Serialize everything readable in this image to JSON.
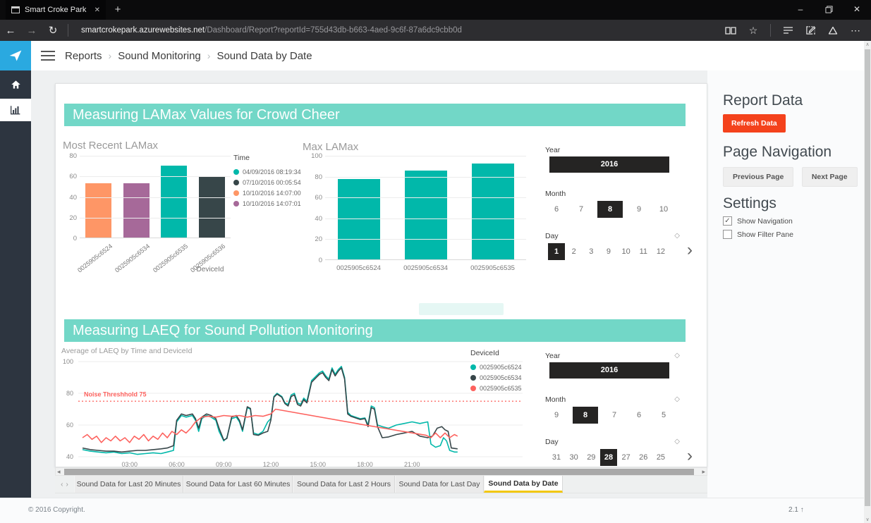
{
  "browser": {
    "tab_title": "Smart Croke Park",
    "url_domain": "smartcrokepark.azurewebsites.net",
    "url_path": "/Dashboard/Report?reportId=755d43db-b663-4aed-9c6f-87a6dc9cbb0d",
    "icons": {
      "back": "←",
      "forward": "→",
      "refresh": "↻",
      "close_tab": "✕",
      "new_tab": "+",
      "star": "☆",
      "more": "⋯",
      "minimize": "–",
      "close_window": "✕"
    }
  },
  "header": {
    "breadcrumb": [
      "Reports",
      "Sound Monitoring",
      "Sound Data by Date"
    ],
    "separator": "›"
  },
  "report": {
    "section1_title": "Measuring LAMax Values for Crowd Cheer",
    "section2_title": "Measuring LAEQ for Sound Pollution Monitoring"
  },
  "slicers": {
    "top": {
      "year_label": "Year",
      "year_selected": "2016",
      "month_label": "Month",
      "month_values": [
        "6",
        "7",
        "8",
        "9",
        "10"
      ],
      "month_selected": "8",
      "day_label": "Day",
      "day_values": [
        "1",
        "2",
        "3",
        "9",
        "10",
        "11",
        "12"
      ],
      "day_selected": "1",
      "erasers": {
        "year": false,
        "month": false,
        "day": true
      }
    },
    "bottom": {
      "year_label": "Year",
      "year_selected": "2016",
      "month_label": "Month",
      "month_values": [
        "9",
        "8",
        "7",
        "6",
        "5"
      ],
      "month_selected": "8",
      "day_label": "Day",
      "day_values": [
        "31",
        "30",
        "29",
        "28",
        "27",
        "26",
        "25"
      ],
      "day_selected": "28",
      "erasers": {
        "year": true,
        "month": true,
        "day": true
      }
    }
  },
  "chart_data": [
    {
      "id": "most_recent_lamax",
      "type": "bar",
      "title": "Most Recent LAMax",
      "categories": [
        "0025905c6524",
        "0025905c6534",
        "0025905c6535",
        "0025905c6536"
      ],
      "values": [
        53,
        53,
        70,
        59
      ],
      "colors": [
        "#FE9666",
        "#A66999",
        "#01B8AA",
        "#374649"
      ],
      "xlabel": "DeviceId",
      "ylim": [
        0,
        80
      ],
      "yticks": [
        0,
        20,
        40,
        60,
        80
      ],
      "legend_title": "Time",
      "legend": [
        {
          "label": "04/09/2016 08:19:34",
          "color": "#01B8AA"
        },
        {
          "label": "07/10/2016 00:05:54",
          "color": "#374649"
        },
        {
          "label": "10/10/2016 14:07:00",
          "color": "#FE9666"
        },
        {
          "label": "10/10/2016 14:07:01",
          "color": "#A66999"
        }
      ]
    },
    {
      "id": "max_lamax",
      "type": "bar",
      "title": "Max LAMax",
      "categories": [
        "0025905c6524",
        "0025905c6534",
        "0025905c6535"
      ],
      "values": [
        77,
        85,
        92
      ],
      "colors": [
        "#01B8AA",
        "#01B8AA",
        "#01B8AA"
      ],
      "xlabel": "",
      "ylim": [
        0,
        100
      ],
      "yticks": [
        0,
        20,
        40,
        60,
        80,
        100
      ]
    },
    {
      "id": "laeq_by_time",
      "type": "line",
      "title": "Average of LAEQ by Time and DeviceId",
      "xticks": [
        "03:00",
        "06:00",
        "09:00",
        "12:00",
        "15:00",
        "18:00",
        "21:00"
      ],
      "xtick_hours": [
        3,
        6,
        9,
        12,
        15,
        18,
        21
      ],
      "xrange": [
        0,
        24
      ],
      "ylim": [
        40,
        100
      ],
      "yticks": [
        40,
        60,
        80,
        100
      ],
      "threshold": {
        "value": 75,
        "label": "Noise Threshhold 75",
        "color": "#FD625E"
      },
      "legend_title": "DeviceId",
      "series": [
        {
          "name": "0025905c6524",
          "color": "#01B8AA",
          "points": [
            [
              0,
              44.5
            ],
            [
              0.5,
              43.5
            ],
            [
              1,
              43
            ],
            [
              1.5,
              42.5
            ],
            [
              2,
              43
            ],
            [
              2.5,
              42
            ],
            [
              3,
              42.5
            ],
            [
              3.5,
              41.5
            ],
            [
              4,
              42
            ],
            [
              4.5,
              42.5
            ],
            [
              5,
              42
            ],
            [
              5.4,
              43
            ],
            [
              5.8,
              44
            ],
            [
              6,
              62
            ],
            [
              6.3,
              66
            ],
            [
              6.6,
              65
            ],
            [
              7,
              66
            ],
            [
              7.2,
              63
            ],
            [
              7.4,
              56
            ],
            [
              7.6,
              64
            ],
            [
              7.9,
              66
            ],
            [
              8.2,
              65
            ],
            [
              8.5,
              63
            ],
            [
              8.7,
              56
            ],
            [
              9,
              50
            ],
            [
              9.2,
              52
            ],
            [
              9.5,
              64
            ],
            [
              9.8,
              65
            ],
            [
              10,
              62
            ],
            [
              10.2,
              56
            ],
            [
              10.5,
              71
            ],
            [
              10.7,
              70
            ],
            [
              10.9,
              55
            ],
            [
              11.2,
              54
            ],
            [
              11.5,
              56
            ],
            [
              11.8,
              62
            ],
            [
              12,
              64
            ],
            [
              12.2,
              78
            ],
            [
              12.4,
              80
            ],
            [
              12.7,
              78
            ],
            [
              12.9,
              74
            ],
            [
              13.1,
              73
            ],
            [
              13.3,
              79
            ],
            [
              13.5,
              80
            ],
            [
              13.7,
              74
            ],
            [
              13.9,
              73
            ],
            [
              14.1,
              77
            ],
            [
              14.3,
              75
            ],
            [
              14.6,
              88
            ],
            [
              14.9,
              91
            ],
            [
              15.1,
              93
            ],
            [
              15.3,
              94
            ],
            [
              15.5,
              91
            ],
            [
              15.7,
              89
            ],
            [
              15.9,
              96
            ],
            [
              16.1,
              92
            ],
            [
              16.3,
              95
            ],
            [
              16.5,
              97
            ],
            [
              16.7,
              90
            ],
            [
              16.9,
              68
            ],
            [
              17.1,
              66
            ],
            [
              17.4,
              65
            ],
            [
              17.7,
              64
            ],
            [
              18,
              64.5
            ],
            [
              18.2,
              60
            ],
            [
              18.4,
              72
            ],
            [
              18.6,
              71
            ],
            [
              18.8,
              60
            ],
            [
              19.1,
              59
            ],
            [
              19.5,
              58
            ],
            [
              20,
              60
            ],
            [
              20.5,
              61
            ],
            [
              21,
              62
            ],
            [
              21.5,
              61
            ],
            [
              22,
              62
            ],
            [
              22.2,
              48
            ],
            [
              22.5,
              46
            ],
            [
              22.8,
              47
            ],
            [
              23,
              52
            ],
            [
              23.2,
              50
            ],
            [
              23.4,
              44
            ],
            [
              23.7,
              43
            ],
            [
              23.9,
              43
            ]
          ]
        },
        {
          "name": "0025905c6534",
          "color": "#374649",
          "points": [
            [
              0,
              45.5
            ],
            [
              0.5,
              44.5
            ],
            [
              1,
              44
            ],
            [
              1.5,
              43.5
            ],
            [
              2,
              43.5
            ],
            [
              2.5,
              43
            ],
            [
              3,
              43.5
            ],
            [
              3.5,
              44
            ],
            [
              4,
              44
            ],
            [
              4.5,
              44.5
            ],
            [
              5,
              45
            ],
            [
              5.4,
              45.5
            ],
            [
              5.8,
              47
            ],
            [
              6,
              63
            ],
            [
              6.3,
              67
            ],
            [
              6.6,
              66
            ],
            [
              7,
              67
            ],
            [
              7.2,
              64
            ],
            [
              7.4,
              58
            ],
            [
              7.6,
              65
            ],
            [
              7.9,
              67
            ],
            [
              8.2,
              66
            ],
            [
              8.5,
              64
            ],
            [
              8.7,
              58
            ],
            [
              9,
              50.5
            ],
            [
              9.2,
              51.5
            ],
            [
              9.5,
              65
            ],
            [
              9.8,
              66
            ],
            [
              10,
              63
            ],
            [
              10.2,
              57
            ],
            [
              10.5,
              71.5
            ],
            [
              10.7,
              70.5
            ],
            [
              10.9,
              54
            ],
            [
              11.2,
              53.5
            ],
            [
              11.5,
              55
            ],
            [
              11.8,
              56
            ],
            [
              12,
              63
            ],
            [
              12.2,
              77.5
            ],
            [
              12.4,
              79.5
            ],
            [
              12.7,
              77.5
            ],
            [
              12.9,
              73.5
            ],
            [
              13.1,
              72
            ],
            [
              13.3,
              78
            ],
            [
              13.5,
              79
            ],
            [
              13.7,
              73
            ],
            [
              13.9,
              72
            ],
            [
              14.1,
              76
            ],
            [
              14.3,
              74
            ],
            [
              14.6,
              87
            ],
            [
              14.9,
              90
            ],
            [
              15.1,
              92
            ],
            [
              15.3,
              93
            ],
            [
              15.5,
              90
            ],
            [
              15.7,
              88
            ],
            [
              15.9,
              95
            ],
            [
              16.1,
              91
            ],
            [
              16.3,
              94
            ],
            [
              16.5,
              96
            ],
            [
              16.7,
              89
            ],
            [
              16.9,
              67
            ],
            [
              17.1,
              65.5
            ],
            [
              17.4,
              64.5
            ],
            [
              17.7,
              63.5
            ],
            [
              18,
              64
            ],
            [
              18.2,
              59
            ],
            [
              18.4,
              71
            ],
            [
              18.6,
              70
            ],
            [
              18.8,
              59
            ],
            [
              19.1,
              52
            ],
            [
              19.5,
              52.5
            ],
            [
              20,
              54
            ],
            [
              20.5,
              55
            ],
            [
              21,
              56
            ],
            [
              21.5,
              53
            ],
            [
              22,
              52
            ],
            [
              22.3,
              53
            ],
            [
              22.6,
              58
            ],
            [
              22.9,
              59
            ],
            [
              23.1,
              57
            ],
            [
              23.3,
              56
            ],
            [
              23.5,
              45.5
            ],
            [
              23.9,
              45
            ]
          ]
        },
        {
          "name": "0025905c6535",
          "color": "#FD625E",
          "points": [
            [
              0,
              52
            ],
            [
              0.3,
              54
            ],
            [
              0.6,
              51
            ],
            [
              0.9,
              53
            ],
            [
              1.2,
              49
            ],
            [
              1.5,
              52
            ],
            [
              1.8,
              50
            ],
            [
              2.1,
              53
            ],
            [
              2.4,
              50
            ],
            [
              2.7,
              52
            ],
            [
              3,
              49
            ],
            [
              3.3,
              53
            ],
            [
              3.6,
              51
            ],
            [
              3.9,
              54
            ],
            [
              4.2,
              50
            ],
            [
              4.5,
              53
            ],
            [
              4.8,
              51
            ],
            [
              5.1,
              55
            ],
            [
              5.4,
              52
            ],
            [
              5.7,
              56
            ],
            [
              6,
              54
            ],
            [
              6.3,
              57
            ],
            [
              6.6,
              55
            ],
            [
              6.9,
              58
            ],
            [
              7.2,
              62
            ],
            [
              7.6,
              65
            ],
            [
              8,
              65.5
            ],
            [
              8.5,
              65
            ],
            [
              9,
              66
            ],
            [
              9.5,
              65.5
            ],
            [
              10,
              66
            ],
            [
              10.5,
              65
            ],
            [
              11,
              66
            ],
            [
              11.5,
              65.5
            ],
            [
              12,
              67
            ],
            [
              12.3,
              70
            ],
            [
              18,
              60
            ],
            [
              21.9,
              53.5
            ],
            [
              22.2,
              52
            ],
            [
              22.5,
              55
            ],
            [
              22.8,
              52
            ],
            [
              23.1,
              55
            ],
            [
              23.4,
              52
            ],
            [
              23.7,
              54
            ],
            [
              23.9,
              53
            ]
          ]
        }
      ]
    }
  ],
  "right_panel": {
    "report_data_title": "Report Data",
    "refresh_button": "Refresh Data",
    "page_navigation_title": "Page Navigation",
    "previous_button": "Previous Page",
    "next_button": "Next Page",
    "settings_title": "Settings",
    "checkboxes": [
      {
        "label": "Show Navigation",
        "checked": true
      },
      {
        "label": "Show Filter Pane",
        "checked": false
      }
    ]
  },
  "tabs": {
    "nav_prev": "‹",
    "nav_next": "›",
    "items": [
      {
        "label": "Sound Data for Last 20 Minutes",
        "active": false
      },
      {
        "label": "Sound Data for Last 60 Minutes",
        "active": false
      },
      {
        "label": "Sound Data for Last 2 Hours",
        "active": false
      },
      {
        "label": "Sound Data for Last Day",
        "active": false
      },
      {
        "label": "Sound Data by Date",
        "active": true
      }
    ]
  },
  "footer": {
    "copyright": "© 2016 Copyright.",
    "version": "2.1"
  },
  "ui_icons": {
    "eraser": "◇",
    "chevron_right": "›",
    "check": "✓",
    "scroll_up": "∧",
    "scroll_down": "∨",
    "version_up": "↑",
    "hscroll_left": "◂",
    "hscroll_right": "▸"
  }
}
